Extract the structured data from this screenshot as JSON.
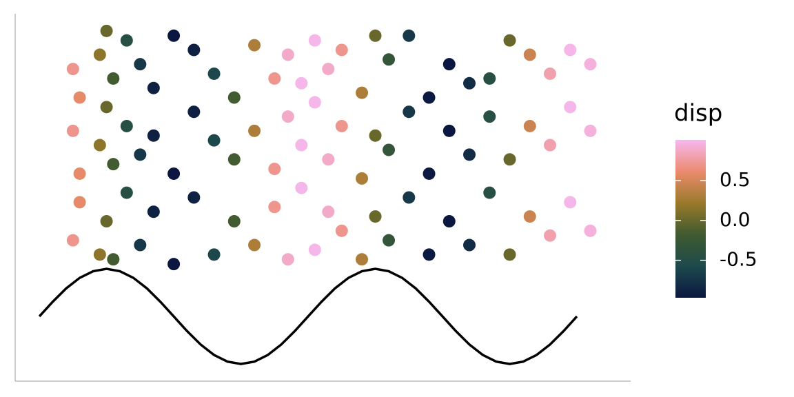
{
  "chart_data": {
    "type": "scatter",
    "x": [
      0.5,
      0.5,
      0.5,
      0.6,
      0.6,
      0.6,
      0.9,
      0.9,
      0.9,
      1,
      1,
      1,
      1.1,
      1.1,
      1.1,
      1.3,
      1.3,
      1.3,
      1.5,
      1.5,
      1.5,
      1.7,
      1.7,
      1.7,
      2,
      2,
      2,
      2.3,
      2.3,
      2.3,
      2.6,
      2.6,
      2.6,
      2.9,
      2.9,
      2.9,
      3.2,
      3.2,
      3.2,
      3.5,
      3.5,
      3.5,
      3.7,
      3.7,
      3.7,
      3.9,
      3.9,
      3.9,
      4.1,
      4.1,
      4.1,
      4.3,
      4.3,
      4.3,
      4.5,
      4.5,
      4.5,
      4.8,
      4.8,
      4.8,
      5,
      5,
      5,
      5.2,
      5.2,
      5.2,
      5.5,
      5.5,
      5.5,
      5.8,
      5.8,
      5.8,
      6.1,
      6.1,
      6.1,
      6.4,
      6.4,
      6.4,
      6.7,
      6.7,
      6.7,
      7,
      7,
      7,
      7.3,
      7.3,
      7.3,
      7.6,
      7.6,
      7.6,
      7.9,
      7.9,
      7.9,
      8.2,
      8.2,
      8.2
    ],
    "y": [
      1.6,
      3.9,
      5.2,
      2.4,
      4.6,
      3.0,
      1.3,
      5.5,
      3.6,
      2.0,
      4.4,
      6.0,
      1.2,
      3.2,
      5.0,
      2.6,
      4.0,
      5.8,
      1.5,
      3.4,
      5.3,
      2.2,
      4.8,
      3.8,
      1.1,
      3.0,
      5.9,
      2.5,
      4.3,
      5.6,
      1.3,
      3.7,
      5.1,
      2.0,
      4.6,
      3.3,
      1.5,
      3.9,
      5.7,
      2.3,
      3.1,
      5.0,
      1.2,
      4.2,
      5.5,
      2.7,
      3.6,
      4.9,
      1.4,
      4.5,
      5.8,
      2.2,
      3.3,
      5.2,
      1.8,
      4.0,
      5.6,
      1.2,
      2.9,
      4.7,
      2.1,
      3.8,
      5.9,
      1.6,
      3.5,
      5.4,
      2.5,
      4.3,
      5.9,
      1.3,
      3.0,
      4.6,
      2.0,
      3.9,
      5.3,
      1.5,
      3.4,
      4.9,
      2.6,
      4.2,
      5.0,
      1.3,
      3.3,
      5.8,
      2.1,
      4.0,
      5.5,
      1.7,
      3.6,
      5.1,
      2.4,
      4.4,
      5.6,
      1.8,
      3.9,
      5.3
    ],
    "disp": [
      0.71,
      0.71,
      0.71,
      0.59,
      0.59,
      0.59,
      0.16,
      0.16,
      0.16,
      0,
      0,
      0,
      -0.16,
      -0.16,
      -0.16,
      -0.45,
      -0.45,
      -0.45,
      -0.71,
      -0.71,
      -0.71,
      -0.89,
      -0.89,
      -0.89,
      -1,
      -1,
      -1,
      -0.89,
      -0.89,
      -0.89,
      -0.59,
      -0.59,
      -0.59,
      -0.16,
      -0.16,
      -0.16,
      0.31,
      0.31,
      0.31,
      0.71,
      0.71,
      0.71,
      0.89,
      0.89,
      0.89,
      0.99,
      0.99,
      0.99,
      0.99,
      0.99,
      0.99,
      0.89,
      0.89,
      0.89,
      0.71,
      0.71,
      0.71,
      0.31,
      0.31,
      0.31,
      0,
      0,
      0,
      -0.31,
      -0.31,
      -0.31,
      -0.71,
      -0.71,
      -0.71,
      -0.95,
      -0.95,
      -0.95,
      -0.99,
      -0.99,
      -0.99,
      -0.81,
      -0.81,
      -0.81,
      -0.45,
      -0.45,
      -0.45,
      0,
      0,
      0,
      0.45,
      0.45,
      0.45,
      0.81,
      0.81,
      0.81,
      0.99,
      0.99,
      0.99,
      0.95,
      0.95,
      0.95
    ],
    "xlim": [
      -0.36,
      8.8
    ],
    "ylim": [
      -1.36,
      6.36
    ],
    "line": {
      "color": "#000000",
      "x": [
        0,
        0.2,
        0.4,
        0.6,
        0.8,
        1,
        1.2,
        1.4,
        1.6,
        1.8,
        2,
        2.2,
        2.4,
        2.6,
        2.8,
        3,
        3.2,
        3.4,
        3.6,
        3.8,
        4,
        4.2,
        4.4,
        4.6,
        4.8,
        5,
        5.2,
        5.4,
        5.6,
        5.8,
        6,
        6.2,
        6.4,
        6.6,
        6.8,
        7,
        7.2,
        7.4,
        7.6,
        7.8,
        8
      ],
      "y": [
        0,
        0.31,
        0.59,
        0.81,
        0.95,
        1,
        0.95,
        0.81,
        0.59,
        0.31,
        0,
        -0.31,
        -0.59,
        -0.81,
        -0.95,
        -1,
        -0.95,
        -0.81,
        -0.59,
        -0.31,
        0,
        0.31,
        0.59,
        0.81,
        0.95,
        1,
        0.95,
        0.81,
        0.59,
        0.31,
        0,
        -0.31,
        -0.59,
        -0.81,
        -0.95,
        -1,
        -0.95,
        -0.81,
        -0.59,
        -0.31,
        0
      ]
    },
    "color_legend": {
      "title": "disp",
      "lim": [
        -0.97,
        1.01
      ],
      "ticks": [
        0.5,
        {
          "value": 0,
          "label": "0.0"
        },
        -0.5
      ],
      "colormap": [
        "#0b1741",
        "#1d4a4c",
        "#3f5a30",
        "#9a7a2a",
        "#ec8b6e",
        "#f6b8f0"
      ]
    }
  }
}
